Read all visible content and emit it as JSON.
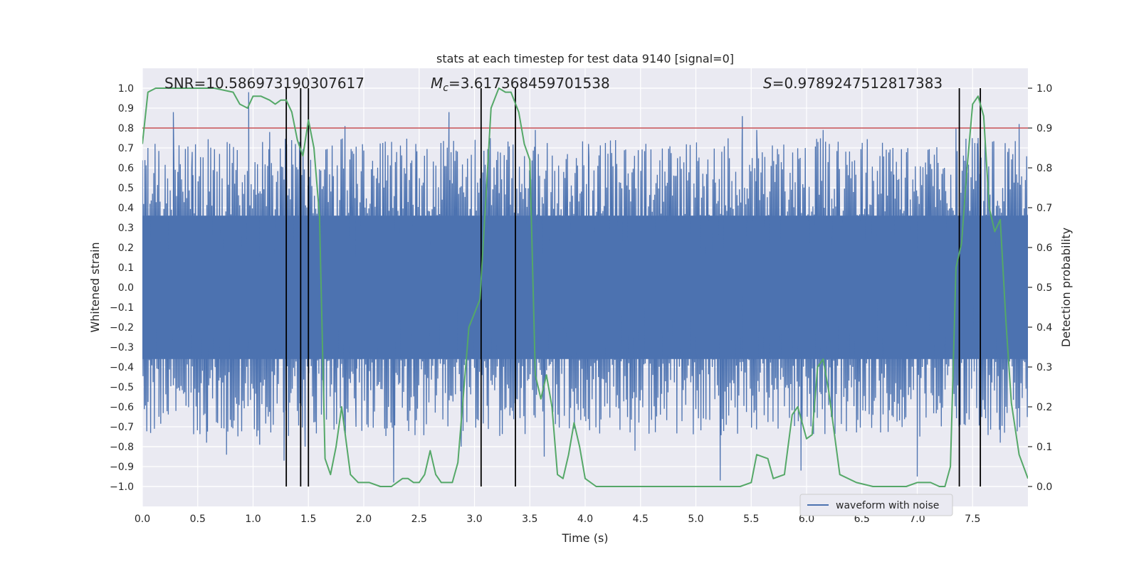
{
  "chart_data": {
    "type": "line",
    "title": "stats at each timestep for test data 9140 [signal=0]",
    "xlabel": "Time (s)",
    "ylabel_left": "Whitened strain",
    "ylabel_right": "Detection probability",
    "xlim": [
      0.0,
      8.0
    ],
    "ylim_left": [
      -1.1,
      1.1
    ],
    "ylim_right": [
      -0.05,
      1.05
    ],
    "x_ticks": [
      "0.0",
      "0.5",
      "1.0",
      "1.5",
      "2.0",
      "2.5",
      "3.0",
      "3.5",
      "4.0",
      "4.5",
      "5.0",
      "5.5",
      "6.0",
      "6.5",
      "7.0",
      "7.5"
    ],
    "y_ticks_left": [
      "1.0",
      "0.9",
      "0.8",
      "0.7",
      "0.6",
      "0.5",
      "0.4",
      "0.3",
      "0.2",
      "0.1",
      "0.0",
      "−0.1",
      "−0.2",
      "−0.3",
      "−0.4",
      "−0.5",
      "−0.6",
      "−0.7",
      "−0.8",
      "−0.9",
      "−1.0"
    ],
    "y_ticks_right": [
      "1.0",
      "0.9",
      "0.8",
      "0.7",
      "0.6",
      "0.5",
      "0.4",
      "0.3",
      "0.2",
      "0.1",
      "0.0"
    ],
    "grid": true,
    "legend": {
      "position": "bottom-right",
      "entries": [
        "waveform with noise"
      ]
    },
    "annotations": {
      "snr": "SNR=10.586973190307617",
      "mc_symbol": "M",
      "mc_sub": "c",
      "mc_value": "=3.617368459701538",
      "s_symbol": "S",
      "s_value": "=0.9789247512817383"
    },
    "colors": {
      "waveform": "#4c72b0",
      "probability": "#55a868",
      "threshold": "#c44e52",
      "marker": "#000000",
      "background": "#eaeaf2",
      "grid": "#ffffff"
    },
    "threshold": {
      "axis": "right",
      "value": 0.9
    },
    "vertical_markers": [
      1.3,
      1.43,
      1.5,
      3.06,
      3.37,
      7.38,
      7.57
    ],
    "waveform_envelope": {
      "typical_abs_min": 0.35,
      "typical_abs_max": 0.75,
      "spikes": [
        {
          "x": 0.05,
          "y": 0.7
        },
        {
          "x": 0.15,
          "y": 0.6
        },
        {
          "x": 0.15,
          "y": -0.65
        },
        {
          "x": 0.28,
          "y": 0.88
        },
        {
          "x": 0.45,
          "y": 0.68
        },
        {
          "x": 0.58,
          "y": -0.78
        },
        {
          "x": 0.76,
          "y": -0.84
        },
        {
          "x": 0.96,
          "y": 0.98
        },
        {
          "x": 1.06,
          "y": -0.79
        },
        {
          "x": 1.15,
          "y": 0.78
        },
        {
          "x": 1.28,
          "y": -0.87
        },
        {
          "x": 1.42,
          "y": 0.73
        },
        {
          "x": 1.47,
          "y": -0.8
        },
        {
          "x": 1.83,
          "y": 0.81
        },
        {
          "x": 1.93,
          "y": -0.7
        },
        {
          "x": 2.27,
          "y": -0.98
        },
        {
          "x": 2.47,
          "y": 0.72
        },
        {
          "x": 2.77,
          "y": 0.88
        },
        {
          "x": 2.88,
          "y": -0.8
        },
        {
          "x": 3.06,
          "y": 0.78
        },
        {
          "x": 3.55,
          "y": 0.79
        },
        {
          "x": 3.63,
          "y": -0.85
        },
        {
          "x": 4.03,
          "y": 0.72
        },
        {
          "x": 4.45,
          "y": -0.82
        },
        {
          "x": 5.22,
          "y": -0.97
        },
        {
          "x": 5.42,
          "y": 0.86
        },
        {
          "x": 5.55,
          "y": 0.79
        },
        {
          "x": 5.95,
          "y": -0.92
        },
        {
          "x": 6.15,
          "y": 0.79
        },
        {
          "x": 6.78,
          "y": 0.7
        },
        {
          "x": 7.0,
          "y": -0.95
        },
        {
          "x": 7.35,
          "y": 0.8
        },
        {
          "x": 7.55,
          "y": 0.75
        },
        {
          "x": 7.75,
          "y": -0.78
        },
        {
          "x": 7.92,
          "y": 0.82
        }
      ]
    },
    "probability_series": {
      "x": [
        0.0,
        0.05,
        0.12,
        0.3,
        0.5,
        0.65,
        0.82,
        0.88,
        0.95,
        1.0,
        1.07,
        1.15,
        1.2,
        1.25,
        1.3,
        1.35,
        1.4,
        1.45,
        1.5,
        1.55,
        1.6,
        1.65,
        1.7,
        1.75,
        1.8,
        1.88,
        1.95,
        2.05,
        2.15,
        2.25,
        2.3,
        2.35,
        2.4,
        2.45,
        2.5,
        2.55,
        2.6,
        2.65,
        2.7,
        2.8,
        2.85,
        2.95,
        3.05,
        3.15,
        3.22,
        3.28,
        3.33,
        3.4,
        3.45,
        3.5,
        3.55,
        3.6,
        3.65,
        3.7,
        3.75,
        3.8,
        3.85,
        3.9,
        3.95,
        4.0,
        4.1,
        4.3,
        4.5,
        4.7,
        4.9,
        5.1,
        5.3,
        5.4,
        5.5,
        5.55,
        5.65,
        5.7,
        5.8,
        5.87,
        5.92,
        6.0,
        6.05,
        6.1,
        6.15,
        6.2,
        6.3,
        6.45,
        6.6,
        6.8,
        6.9,
        7.0,
        7.12,
        7.2,
        7.25,
        7.3,
        7.35,
        7.4,
        7.45,
        7.5,
        7.55,
        7.6,
        7.65,
        7.7,
        7.75,
        7.8,
        7.85,
        7.92,
        8.0
      ],
      "y": [
        0.86,
        0.99,
        1.0,
        1.0,
        1.0,
        1.0,
        0.99,
        0.96,
        0.95,
        0.98,
        0.98,
        0.97,
        0.96,
        0.97,
        0.97,
        0.94,
        0.87,
        0.83,
        0.92,
        0.85,
        0.68,
        0.07,
        0.03,
        0.1,
        0.2,
        0.03,
        0.01,
        0.01,
        0.0,
        0.0,
        0.01,
        0.02,
        0.02,
        0.01,
        0.01,
        0.03,
        0.09,
        0.03,
        0.01,
        0.01,
        0.06,
        0.4,
        0.47,
        0.95,
        1.0,
        0.99,
        0.99,
        0.94,
        0.86,
        0.82,
        0.28,
        0.22,
        0.28,
        0.2,
        0.03,
        0.02,
        0.08,
        0.16,
        0.1,
        0.02,
        0.0,
        0.0,
        0.0,
        0.0,
        0.0,
        0.0,
        0.0,
        0.0,
        0.01,
        0.08,
        0.07,
        0.02,
        0.03,
        0.18,
        0.2,
        0.12,
        0.13,
        0.3,
        0.32,
        0.24,
        0.03,
        0.01,
        0.0,
        0.0,
        0.0,
        0.01,
        0.01,
        0.0,
        0.0,
        0.05,
        0.55,
        0.61,
        0.8,
        0.96,
        0.98,
        0.93,
        0.7,
        0.64,
        0.67,
        0.42,
        0.21,
        0.08,
        0.02
      ]
    }
  }
}
